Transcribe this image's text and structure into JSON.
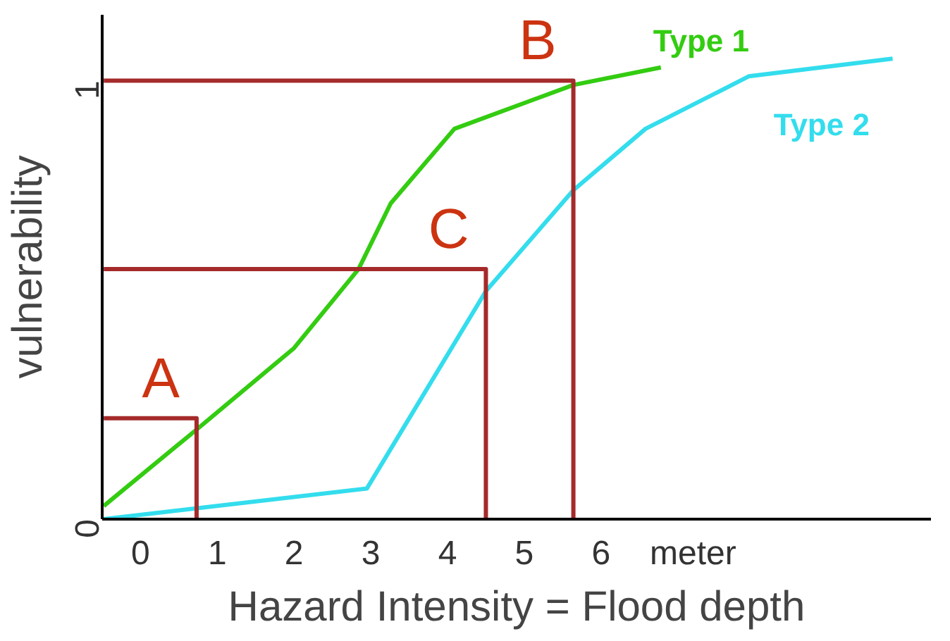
{
  "chart_data": {
    "type": "line",
    "xlabel": "Hazard Intensity = Flood depth",
    "ylabel": "vulnerability",
    "xlim": [
      -0.5,
      10.3
    ],
    "ylim": [
      0,
      1.15
    ],
    "xticks": [
      0,
      1,
      2,
      3,
      4,
      5,
      6,
      {
        "value": 7.2,
        "label": "meter"
      }
    ],
    "yticks": [
      0,
      1
    ],
    "grid": false,
    "marker": "none",
    "line_style": "solid",
    "series": [
      {
        "name": "Type 1",
        "color": "#33cc11",
        "x": [
          -0.48,
          0.77,
          2.0,
          2.84,
          3.26,
          4.09,
          5.64,
          6.78
        ],
        "values": [
          0.03,
          0.21,
          0.39,
          0.57,
          0.72,
          0.89,
          0.99,
          1.03
        ]
      },
      {
        "name": "Type 2",
        "color": "#33dded",
        "x": [
          -0.48,
          2.95,
          4.5,
          5.64,
          6.58,
          7.93,
          9.8
        ],
        "values": [
          0,
          0.07,
          0.52,
          0.75,
          0.89,
          1.01,
          1.05
        ]
      },
      {
        "color": "#a52a2a",
        "x": [
          -0.48,
          0.73,
          0.73
        ],
        "values": [
          0.23,
          0.23,
          0
        ]
      },
      {
        "color": "#a52a2a",
        "x": [
          -0.48,
          4.5,
          4.5
        ],
        "values": [
          0.57,
          0.57,
          0
        ]
      },
      {
        "color": "#a52a2a",
        "x": [
          -0.48,
          5.64,
          5.64
        ],
        "values": [
          1.0,
          1.0,
          0
        ]
      }
    ],
    "annotations": [
      {
        "text": "A",
        "x": 0.73,
        "y": 0.23
      },
      {
        "text": "C",
        "x": 4.5,
        "y": 0.57
      },
      {
        "text": "B",
        "x": 5.64,
        "y": 1.0
      }
    ]
  }
}
